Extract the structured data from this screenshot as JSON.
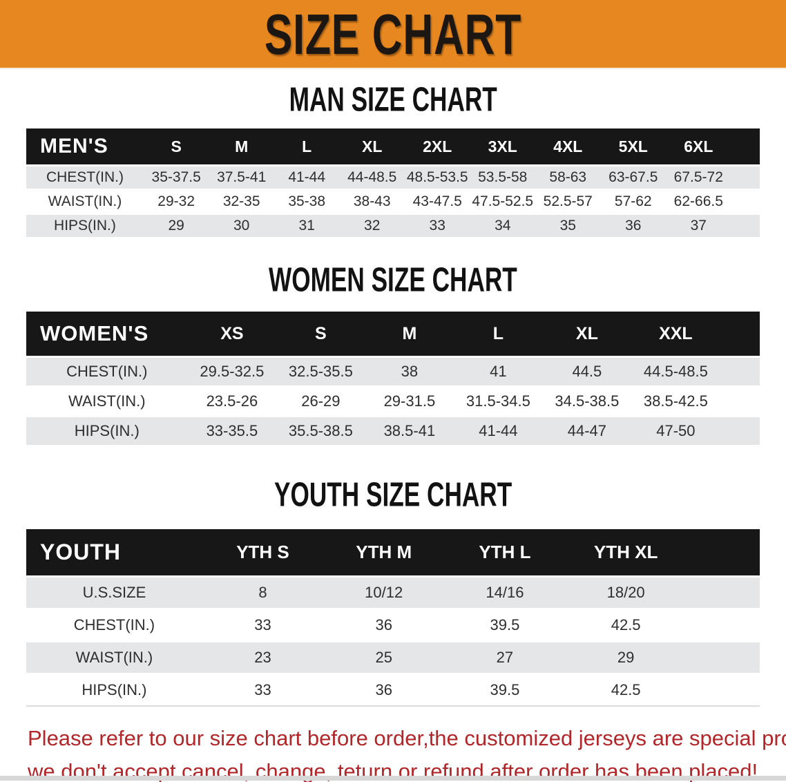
{
  "banner": {
    "title": "SIZE CHART"
  },
  "colors": {
    "banner_bg": "#e7871f",
    "banner_text": "#1c1712",
    "bar_bg": "#171717",
    "bar_text": "#ffffff",
    "row_gray": "#e5e6e8",
    "notice_red": "#b2262a",
    "strip_gray": "#d7d7d7"
  },
  "sections": [
    {
      "heading": "MAN SIZE CHART",
      "table": {
        "header_label": "MEN'S",
        "columns": [
          "S",
          "M",
          "L",
          "XL",
          "2XL",
          "3XL",
          "4XL",
          "5XL",
          "6XL"
        ],
        "rows": [
          {
            "label": "CHEST(IN.)",
            "values": [
              "35-37.5",
              "37.5-41",
              "41-44",
              "44-48.5",
              "48.5-53.5",
              "53.5-58",
              "58-63",
              "63-67.5",
              "67.5-72"
            ]
          },
          {
            "label": "WAIST(IN.)",
            "values": [
              "29-32",
              "32-35",
              "35-38",
              "38-43",
              "43-47.5",
              "47.5-52.5",
              "52.5-57",
              "57-62",
              "62-66.5"
            ]
          },
          {
            "label": "HIPS(IN.)",
            "values": [
              "29",
              "30",
              "31",
              "32",
              "33",
              "34",
              "35",
              "36",
              "37"
            ]
          }
        ]
      }
    },
    {
      "heading": "WOMEN SIZE CHART",
      "table": {
        "header_label": "WOMEN'S",
        "columns": [
          "XS",
          "S",
          "M",
          "L",
          "XL",
          "XXL"
        ],
        "rows": [
          {
            "label": "CHEST(IN.)",
            "values": [
              "29.5-32.5",
              "32.5-35.5",
              "38",
              "41",
              "44.5",
              "44.5-48.5"
            ]
          },
          {
            "label": "WAIST(IN.)",
            "values": [
              "23.5-26",
              "26-29",
              "29-31.5",
              "31.5-34.5",
              "34.5-38.5",
              "38.5-42.5"
            ]
          },
          {
            "label": "HIPS(IN.)",
            "values": [
              "33-35.5",
              "35.5-38.5",
              "38.5-41",
              "41-44",
              "44-47",
              "47-50"
            ]
          }
        ]
      }
    },
    {
      "heading": "YOUTH SIZE CHART",
      "table": {
        "header_label": "YOUTH",
        "columns": [
          "YTH S",
          "YTH M",
          "YTH L",
          "YTH XL"
        ],
        "rows": [
          {
            "label": "U.S.SIZE",
            "values": [
              "8",
              "10/12",
              "14/16",
              "18/20"
            ]
          },
          {
            "label": "CHEST(IN.)",
            "values": [
              "33",
              "36",
              "39.5",
              "42.5"
            ]
          },
          {
            "label": "WAIST(IN.)",
            "values": [
              "23",
              "25",
              "27",
              "29"
            ]
          },
          {
            "label": "HIPS(IN.)",
            "values": [
              "33",
              "36",
              "39.5",
              "42.5"
            ]
          }
        ]
      }
    }
  ],
  "chart_data": [
    {
      "type": "table",
      "title": "MAN SIZE CHART",
      "categories": [
        "S",
        "M",
        "L",
        "XL",
        "2XL",
        "3XL",
        "4XL",
        "5XL",
        "6XL"
      ],
      "series": [
        {
          "name": "CHEST(IN.)",
          "values": [
            "35-37.5",
            "37.5-41",
            "41-44",
            "44-48.5",
            "48.5-53.5",
            "53.5-58",
            "58-63",
            "63-67.5",
            "67.5-72"
          ]
        },
        {
          "name": "WAIST(IN.)",
          "values": [
            "29-32",
            "32-35",
            "35-38",
            "38-43",
            "43-47.5",
            "47.5-52.5",
            "52.5-57",
            "57-62",
            "62-66.5"
          ]
        },
        {
          "name": "HIPS(IN.)",
          "values": [
            29,
            30,
            31,
            32,
            33,
            34,
            35,
            36,
            37
          ]
        }
      ]
    },
    {
      "type": "table",
      "title": "WOMEN SIZE CHART",
      "categories": [
        "XS",
        "S",
        "M",
        "L",
        "XL",
        "XXL"
      ],
      "series": [
        {
          "name": "CHEST(IN.)",
          "values": [
            "29.5-32.5",
            "32.5-35.5",
            "38",
            "41",
            "44.5",
            "44.5-48.5"
          ]
        },
        {
          "name": "WAIST(IN.)",
          "values": [
            "23.5-26",
            "26-29",
            "29-31.5",
            "31.5-34.5",
            "34.5-38.5",
            "38.5-42.5"
          ]
        },
        {
          "name": "HIPS(IN.)",
          "values": [
            "33-35.5",
            "35.5-38.5",
            "38.5-41",
            "41-44",
            "44-47",
            "47-50"
          ]
        }
      ]
    },
    {
      "type": "table",
      "title": "YOUTH SIZE CHART",
      "categories": [
        "YTH S",
        "YTH M",
        "YTH L",
        "YTH XL"
      ],
      "series": [
        {
          "name": "U.S.SIZE",
          "values": [
            "8",
            "10/12",
            "14/16",
            "18/20"
          ]
        },
        {
          "name": "CHEST(IN.)",
          "values": [
            33,
            36,
            39.5,
            42.5
          ]
        },
        {
          "name": "WAIST(IN.)",
          "values": [
            23,
            25,
            27,
            29
          ]
        },
        {
          "name": "HIPS(IN.)",
          "values": [
            33,
            36,
            39.5,
            42.5
          ]
        }
      ]
    }
  ],
  "footer": {
    "line1": "Please refer to our size chart before order,the customized jerseys are special products,",
    "line2": "we don't accept cancel, change, teturn or refund after order has been placed!"
  }
}
